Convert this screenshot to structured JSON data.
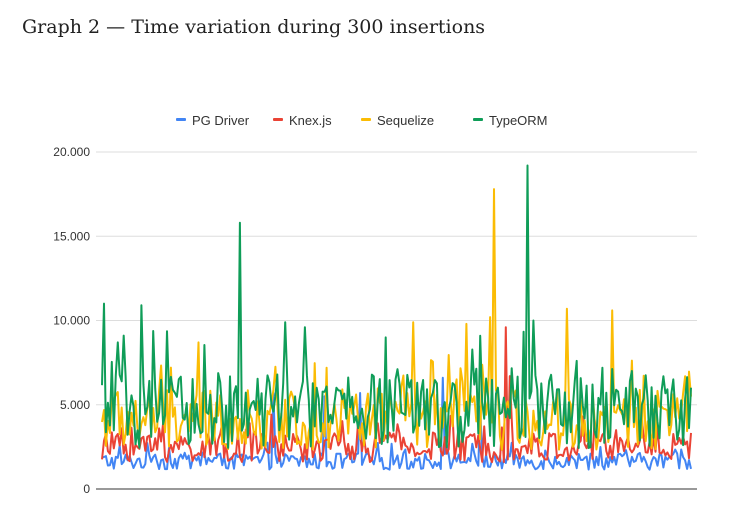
{
  "caption": "Graph 2 — Time variation during 300 insertions",
  "chart_data": {
    "type": "line",
    "title": "",
    "xlabel": "",
    "ylabel": "",
    "ylim": [
      0,
      20000
    ],
    "y_ticks": [
      0,
      5000,
      10000,
      15000,
      20000
    ],
    "y_tick_labels": [
      "0",
      "5.000",
      "10.000",
      "15.000",
      "20.000"
    ],
    "grid": "horizontal",
    "legend_position": "top",
    "x_count": 300,
    "x_note": "insertion index 1..300 (no tick labels shown)",
    "series": [
      {
        "name": "PG Driver",
        "color": "#4285F4",
        "base": 1600,
        "amplitude": 500,
        "spikes": [
          [
            87,
            5700
          ],
          [
            113,
            5500
          ],
          [
            131,
            5700
          ],
          [
            173,
            6600
          ],
          [
            192,
            4900
          ]
        ]
      },
      {
        "name": "Knex.js",
        "color": "#EA4335",
        "base": 2400,
        "amplitude": 900,
        "spikes": [
          [
            205,
            9600
          ],
          [
            207,
            6700
          ],
          [
            31,
            3900
          ],
          [
            140,
            3900
          ]
        ]
      },
      {
        "name": "Sequelize",
        "color": "#FBBC04",
        "base": 3900,
        "amplitude": 1800,
        "spikes": [
          [
            199,
            17800
          ],
          [
            236,
            10700
          ],
          [
            158,
            9900
          ],
          [
            197,
            10200
          ],
          [
            259,
            10600
          ],
          [
            49,
            8700
          ],
          [
            185,
            9800
          ],
          [
            114,
            7200
          ]
        ]
      },
      {
        "name": "TypeORM",
        "color": "#0F9D58",
        "base": 4400,
        "amplitude": 2200,
        "spikes": [
          [
            1,
            11000
          ],
          [
            20,
            10900
          ],
          [
            70,
            15800
          ],
          [
            93,
            9900
          ],
          [
            144,
            9000
          ],
          [
            216,
            19200
          ],
          [
            219,
            10000
          ],
          [
            8,
            8700
          ],
          [
            103,
            9600
          ],
          [
            241,
            7600
          ],
          [
            254,
            7200
          ]
        ]
      }
    ]
  }
}
